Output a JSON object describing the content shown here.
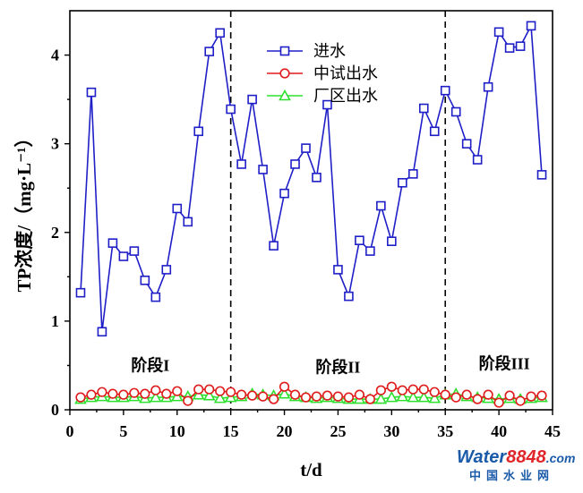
{
  "chart_data": {
    "type": "line",
    "xlabel": "t/d",
    "ylabel": "TP浓度/（mg·L⁻¹）",
    "xlim": [
      0,
      45
    ],
    "ylim": [
      0,
      4.5
    ],
    "xticks": [
      0,
      5,
      10,
      15,
      20,
      25,
      30,
      35,
      40,
      45
    ],
    "yticks": [
      0,
      1,
      2,
      3,
      4
    ],
    "legend_position": "top-center",
    "dividers": [
      15,
      35
    ],
    "phases": [
      {
        "label": "阶段I",
        "x": 7.5,
        "y": 0.5
      },
      {
        "label": "阶段II",
        "x": 25,
        "y": 0.48
      },
      {
        "label": "阶段III",
        "x": 40.5,
        "y": 0.52
      }
    ],
    "series": [
      {
        "name": "进水",
        "color": "#1f1fc8",
        "marker": "square",
        "x": [
          1,
          2,
          3,
          4,
          5,
          6,
          7,
          8,
          9,
          10,
          11,
          12,
          13,
          14,
          15,
          16,
          17,
          18,
          19,
          20,
          21,
          22,
          23,
          24,
          25,
          26,
          27,
          28,
          29,
          30,
          31,
          32,
          33,
          34,
          35,
          36,
          37,
          38,
          39,
          40,
          41,
          42,
          43,
          44
        ],
        "values": [
          1.32,
          3.58,
          0.88,
          1.88,
          1.73,
          1.79,
          1.46,
          1.27,
          1.58,
          2.27,
          2.12,
          3.14,
          4.04,
          4.25,
          3.39,
          2.77,
          3.5,
          2.71,
          1.85,
          2.44,
          2.77,
          2.95,
          2.62,
          3.44,
          1.58,
          1.28,
          1.91,
          1.79,
          2.3,
          1.9,
          2.56,
          2.66,
          3.4,
          3.14,
          3.6,
          3.36,
          3.0,
          2.82,
          3.64,
          4.26,
          4.08,
          4.1,
          4.33,
          2.65
        ]
      },
      {
        "name": "中试出水",
        "color": "#e01b1b",
        "marker": "circle",
        "x": [
          1,
          2,
          3,
          4,
          5,
          6,
          7,
          8,
          9,
          10,
          11,
          12,
          13,
          14,
          15,
          16,
          17,
          18,
          19,
          20,
          21,
          22,
          23,
          24,
          25,
          26,
          27,
          28,
          29,
          30,
          31,
          32,
          33,
          34,
          35,
          36,
          37,
          38,
          39,
          40,
          41,
          42,
          43,
          44
        ],
        "values": [
          0.14,
          0.17,
          0.2,
          0.18,
          0.17,
          0.19,
          0.18,
          0.22,
          0.18,
          0.21,
          0.1,
          0.23,
          0.23,
          0.21,
          0.2,
          0.17,
          0.16,
          0.15,
          0.12,
          0.26,
          0.17,
          0.14,
          0.15,
          0.16,
          0.15,
          0.14,
          0.17,
          0.12,
          0.22,
          0.26,
          0.22,
          0.23,
          0.23,
          0.2,
          0.17,
          0.14,
          0.17,
          0.12,
          0.17,
          0.08,
          0.16,
          0.1,
          0.15,
          0.16
        ]
      },
      {
        "name": "厂区出水",
        "color": "#2ee02e",
        "marker": "triangle",
        "x": [
          1,
          2,
          3,
          4,
          5,
          6,
          7,
          8,
          9,
          10,
          11,
          12,
          13,
          14,
          15,
          16,
          17,
          18,
          19,
          20,
          21,
          22,
          23,
          24,
          25,
          26,
          27,
          28,
          29,
          30,
          31,
          32,
          33,
          34,
          35,
          36,
          37,
          38,
          39,
          40,
          41,
          42,
          43,
          44
        ],
        "values": [
          0.12,
          0.14,
          0.15,
          0.14,
          0.14,
          0.15,
          0.13,
          0.14,
          0.14,
          0.15,
          0.15,
          0.17,
          0.16,
          0.13,
          0.14,
          0.15,
          0.18,
          0.17,
          0.16,
          0.18,
          0.15,
          0.14,
          0.13,
          0.14,
          0.13,
          0.12,
          0.12,
          0.12,
          0.12,
          0.14,
          0.15,
          0.14,
          0.14,
          0.13,
          0.17,
          0.18,
          0.15,
          0.14,
          0.13,
          0.12,
          0.13,
          0.12,
          0.13,
          0.14
        ]
      }
    ]
  },
  "watermark": {
    "text_water": "Water",
    "text_num": "8848",
    "text_dot": ".com",
    "subtitle": "中国水业网"
  }
}
